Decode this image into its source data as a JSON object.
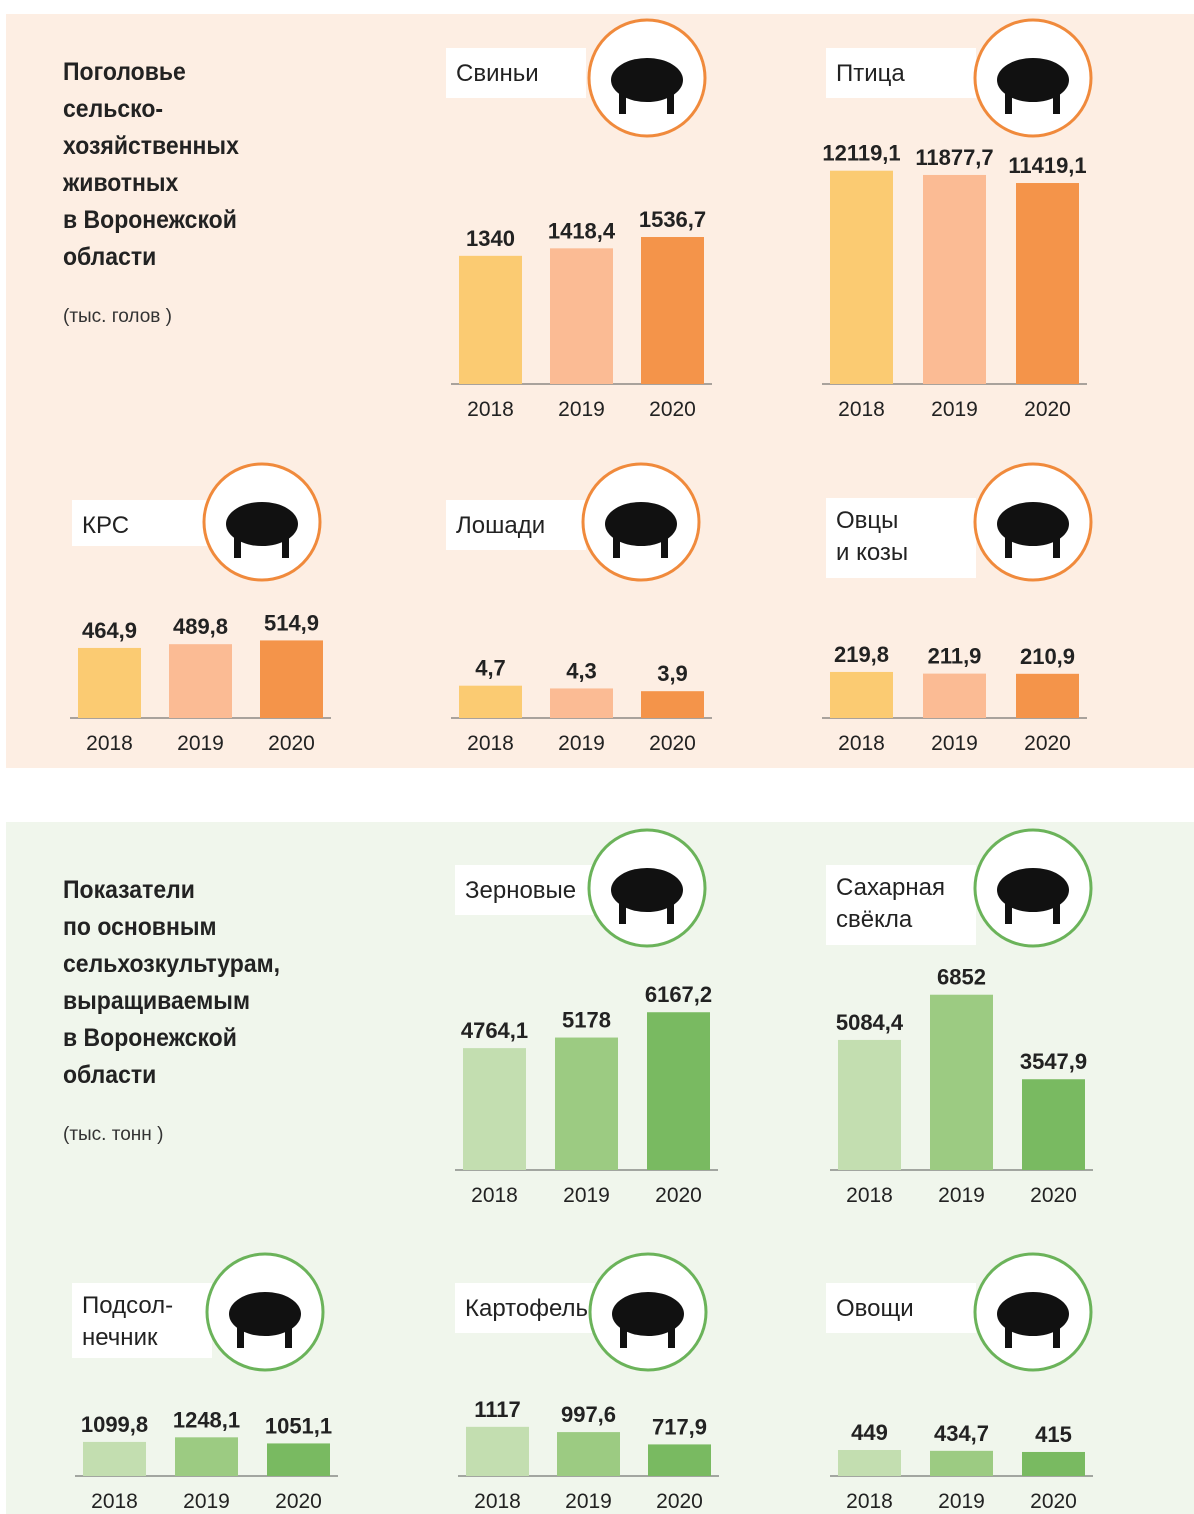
{
  "sections": [
    {
      "title": "Поголовье\nсельско-\nхозяйственных\nживотных\nв Воронежской\nобласти",
      "unit": "(тыс. голов )"
    },
    {
      "title": "Показатели\nпо основным\nсельхозкультурам,\nвыращиваемым\nв Воронежской\nобласти",
      "unit": "(тыс. тонн )"
    }
  ],
  "chart_data": [
    {
      "type": "bar",
      "title": "Свиньи",
      "categories": [
        "2018",
        "2019",
        "2020"
      ],
      "values": [
        1340,
        1418.4,
        1536.7
      ],
      "value_labels": [
        "1340",
        "1418,4",
        "1536,7"
      ],
      "colors": [
        "#fbcb72",
        "#fbbb94",
        "#f4944a"
      ],
      "ylim": [
        0,
        2300
      ]
    },
    {
      "type": "bar",
      "title": "Птица",
      "categories": [
        "2018",
        "2019",
        "2020"
      ],
      "values": [
        12119.1,
        11877.7,
        11419.1
      ],
      "value_labels": [
        "12119,1",
        "11877,7",
        "11419,1"
      ],
      "colors": [
        "#fbcb72",
        "#fbbb94",
        "#f4944a"
      ],
      "ylim": [
        0,
        12500
      ]
    },
    {
      "type": "bar",
      "title": "КРС",
      "categories": [
        "2018",
        "2019",
        "2020"
      ],
      "values": [
        464.9,
        489.8,
        514.9
      ],
      "value_labels": [
        "464,9",
        "489,8",
        "514,9"
      ],
      "colors": [
        "#fbcb72",
        "#fbbb94",
        "#f4944a"
      ],
      "ylim": [
        0,
        1460
      ]
    },
    {
      "type": "bar",
      "title": "Лошади",
      "categories": [
        "2018",
        "2019",
        "2020"
      ],
      "values": [
        4.7,
        4.3,
        3.9
      ],
      "value_labels": [
        "4,7",
        "4,3",
        "3,9"
      ],
      "colors": [
        "#fbcb72",
        "#fbbb94",
        "#f4944a"
      ],
      "ylim": [
        0,
        32
      ]
    },
    {
      "type": "bar",
      "title": "Овцы\nи козы",
      "categories": [
        "2018",
        "2019",
        "2020"
      ],
      "values": [
        219.8,
        211.9,
        210.9
      ],
      "value_labels": [
        "219,8",
        "211,9",
        "210,9"
      ],
      "colors": [
        "#fbcb72",
        "#fbbb94",
        "#f4944a"
      ],
      "ylim": [
        0,
        1050
      ]
    },
    {
      "type": "bar",
      "title": "Зерновые",
      "categories": [
        "2018",
        "2019",
        "2020"
      ],
      "values": [
        4764.1,
        5178,
        6167.2
      ],
      "value_labels": [
        "4764,1",
        "5178",
        "6167,2"
      ],
      "colors": [
        "#c3deb0",
        "#9ccb82",
        "#79ba61"
      ],
      "ylim": [
        0,
        8600
      ]
    },
    {
      "type": "bar",
      "title": "Сахарная\nсвёкла",
      "categories": [
        "2018",
        "2019",
        "2020"
      ],
      "values": [
        5084.4,
        6852,
        3547.9
      ],
      "value_labels": [
        "5084,4",
        "6852",
        "3547,9"
      ],
      "colors": [
        "#c3deb0",
        "#9ccb82",
        "#79ba61"
      ],
      "ylim": [
        0,
        8600
      ]
    },
    {
      "type": "bar",
      "title": "Подсол-\nнечник",
      "categories": [
        "2018",
        "2019",
        "2020"
      ],
      "values": [
        1099.8,
        1248.1,
        1051.1
      ],
      "value_labels": [
        "1099,8",
        "1248,1",
        "1051,1"
      ],
      "colors": [
        "#c3deb0",
        "#9ccb82",
        "#79ba61"
      ],
      "ylim": [
        0,
        7100
      ]
    },
    {
      "type": "bar",
      "title": "Картофель",
      "categories": [
        "2018",
        "2019",
        "2020"
      ],
      "values": [
        1117,
        997.6,
        717.9
      ],
      "value_labels": [
        "1117",
        "997,6",
        "717,9"
      ],
      "colors": [
        "#c3deb0",
        "#9ccb82",
        "#79ba61"
      ],
      "ylim": [
        0,
        5000
      ]
    },
    {
      "type": "bar",
      "title": "Овощи",
      "categories": [
        "2018",
        "2019",
        "2020"
      ],
      "values": [
        449,
        434.7,
        415
      ],
      "value_labels": [
        "449",
        "434,7",
        "415"
      ],
      "colors": [
        "#c3deb0",
        "#9ccb82",
        "#79ba61"
      ],
      "ylim": [
        0,
        3800
      ]
    }
  ]
}
